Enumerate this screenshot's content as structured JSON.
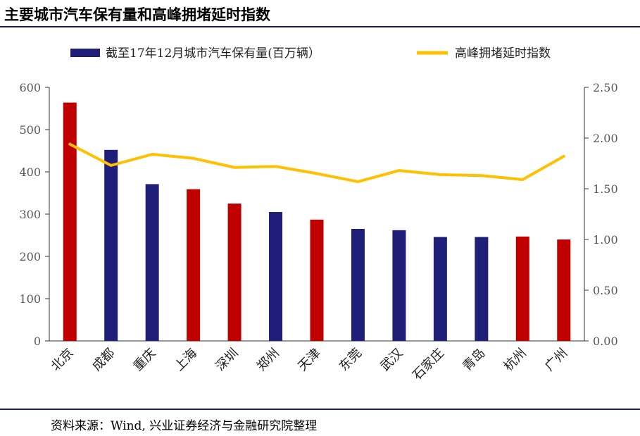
{
  "header": {
    "title": "主要城市汽车保有量和高峰拥堵延时指数"
  },
  "footer": {
    "source": "资料来源：Wind, 兴业证券经济与金融研究院整理"
  },
  "colors": {
    "bar_red": "#c00000",
    "bar_navy": "#1f1f7a",
    "line": "#ffc000",
    "axis": "#333333",
    "rule": "#1c1f5e"
  },
  "chart_data": {
    "type": "bar",
    "categories": [
      "北京",
      "成都",
      "重庆",
      "上海",
      "深圳",
      "郑州",
      "天津",
      "东莞",
      "武汉",
      "石家庄",
      "青岛",
      "杭州",
      "广州"
    ],
    "series": [
      {
        "name": "截至17年12月城市汽车保有量(百万辆）",
        "type": "bar",
        "axis": "left",
        "values": [
          564,
          452,
          371,
          359,
          325,
          305,
          287,
          265,
          262,
          246,
          246,
          247,
          240
        ],
        "bar_colors": [
          "red",
          "navy",
          "navy",
          "red",
          "red",
          "navy",
          "red",
          "navy",
          "navy",
          "navy",
          "navy",
          "red",
          "red"
        ]
      },
      {
        "name": "高峰拥堵延时指数",
        "type": "line",
        "axis": "right",
        "values": [
          1.94,
          1.73,
          1.84,
          1.8,
          1.71,
          1.72,
          1.65,
          1.57,
          1.68,
          1.64,
          1.63,
          1.59,
          1.82
        ]
      }
    ],
    "y_left": {
      "min": 0,
      "max": 600,
      "ticks": [
        0,
        100,
        200,
        300,
        400,
        500,
        600
      ],
      "tick_labels": [
        "0",
        "100",
        "200",
        "300",
        "400",
        "500",
        "600"
      ]
    },
    "y_right": {
      "min": 0,
      "max": 2.5,
      "ticks": [
        0,
        0.5,
        1.0,
        1.5,
        2.0,
        2.5
      ],
      "tick_labels": [
        "0.00",
        "0.50",
        "1.00",
        "1.50",
        "2.00",
        "2.50"
      ]
    },
    "legend": "top",
    "grid": false
  }
}
